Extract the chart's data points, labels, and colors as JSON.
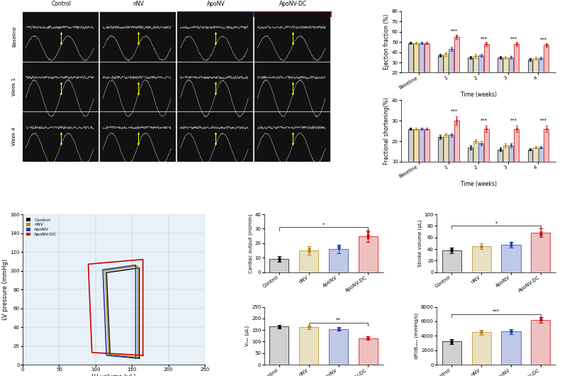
{
  "ef_timepoints": [
    "Baseline",
    "1",
    "2",
    "3",
    "4"
  ],
  "ef_control": [
    49,
    37,
    35,
    35,
    33
  ],
  "ef_nnv": [
    49,
    38,
    36,
    35,
    34
  ],
  "ef_aponv": [
    49,
    43,
    37,
    35,
    34
  ],
  "ef_aponvdc": [
    49,
    55,
    48,
    48,
    47
  ],
  "ef_control_err": [
    1,
    1.5,
    1.5,
    1.5,
    1.5
  ],
  "ef_nnv_err": [
    1,
    2,
    2,
    1.5,
    1.5
  ],
  "ef_aponv_err": [
    1,
    2,
    1.5,
    1.5,
    1.5
  ],
  "ef_aponvdc_err": [
    1,
    2,
    2,
    2,
    2
  ],
  "ef_ylabel": "Ejection fraction (%)",
  "ef_xlabel": "Time (weeks)",
  "ef_ylim": [
    20,
    80
  ],
  "ef_yticks": [
    20,
    30,
    40,
    50,
    60,
    70,
    80
  ],
  "fs_timepoints": [
    "Baseline",
    "1",
    "2",
    "3",
    "4"
  ],
  "fs_control": [
    26,
    22,
    17,
    16,
    16
  ],
  "fs_nnv": [
    26,
    23,
    20,
    18,
    17
  ],
  "fs_aponv": [
    26,
    23,
    19,
    18,
    17
  ],
  "fs_aponvdc": [
    26,
    30,
    26,
    26,
    26
  ],
  "fs_control_err": [
    0.5,
    1,
    1,
    1,
    0.5
  ],
  "fs_nnv_err": [
    0.5,
    1,
    1,
    1,
    0.5
  ],
  "fs_aponv_err": [
    0.5,
    1,
    1,
    1,
    0.5
  ],
  "fs_aponvdc_err": [
    0.5,
    2,
    1.5,
    1.5,
    1.5
  ],
  "fs_ylabel": "Fractional shortening(%)",
  "fs_xlabel": "Time (weeks)",
  "fs_ylim": [
    10,
    40
  ],
  "fs_yticks": [
    10,
    20,
    30,
    40
  ],
  "lv_xlabel": "LV volume (μL)",
  "lv_ylabel": "LV pressure (mmHg)",
  "lv_xlim": [
    0,
    250
  ],
  "lv_ylim": [
    0,
    160
  ],
  "lv_xticks": [
    0,
    50,
    100,
    150,
    200,
    250
  ],
  "lv_yticks": [
    0,
    20,
    40,
    60,
    80,
    100,
    120,
    140,
    160
  ],
  "co_categories": [
    "Control",
    "nNV",
    "ApoNV",
    "ApoNV-DC"
  ],
  "co_values": [
    9,
    15,
    16,
    25
  ],
  "co_errors": [
    2,
    3,
    3,
    4
  ],
  "co_ylabel": "Cardiac output (ml/min)",
  "co_ylim": [
    0,
    40
  ],
  "co_yticks": [
    0,
    10,
    20,
    30,
    40
  ],
  "sv_categories": [
    "Control",
    "nNV",
    "ApoNV",
    "ApoNV-DC"
  ],
  "sv_values": [
    38,
    45,
    47,
    68
  ],
  "sv_errors": [
    5,
    5,
    5,
    7
  ],
  "sv_ylabel": "Stroke volume (μL)",
  "sv_ylim": [
    0,
    100
  ],
  "sv_yticks": [
    0,
    20,
    40,
    60,
    80,
    100
  ],
  "ves_categories": [
    "Control",
    "nNV",
    "ApoNV",
    "ApoNV-DC"
  ],
  "ves_values": [
    165,
    162,
    155,
    115
  ],
  "ves_errors": [
    8,
    8,
    8,
    8
  ],
  "ves_ylabel": "Vₕₐₛ (μL)",
  "ves_ylim": [
    0,
    250
  ],
  "ves_yticks": [
    0,
    50,
    100,
    150,
    200,
    250
  ],
  "dpdt_categories": [
    "Control",
    "nNV",
    "ApoNV",
    "ApoNV-DC"
  ],
  "dpdt_values": [
    3200,
    4500,
    4600,
    6200
  ],
  "dpdt_errors": [
    300,
    350,
    350,
    400
  ],
  "dpdt_ylabel": "dP/dtₘₐₓ (mmHg/s)",
  "dpdt_ylim": [
    0,
    8000
  ],
  "dpdt_yticks": [
    0,
    2000,
    4000,
    6000,
    8000
  ],
  "colors": {
    "control": "#000000",
    "nnv": "#b8860b",
    "aponv": "#1e40af",
    "aponvdc": "#cc0000"
  },
  "bar_colors": {
    "control": "#d0d0d0",
    "nnv": "#e8e0c0",
    "aponv": "#c0c8e8",
    "aponvdc": "#f0c0c0"
  },
  "background_color": "#e8f0f8"
}
